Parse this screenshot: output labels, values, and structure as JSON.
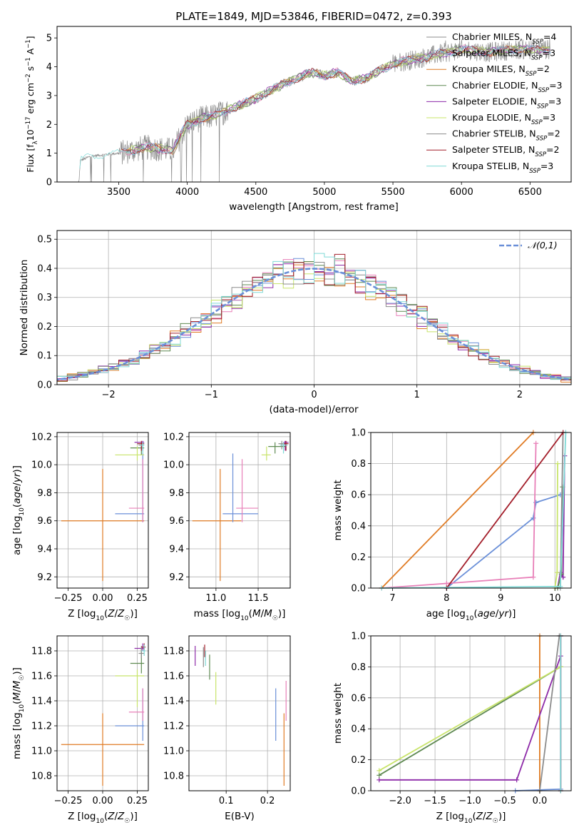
{
  "colors": [
    "#e07b24",
    "#6a8fd8",
    "#e87fb8",
    "#8d2aa8",
    "#5f8a52",
    "#c8e46a",
    "#8c8c8c",
    "#a31e2a",
    "#7fd9d6"
  ],
  "chart_data": [
    {
      "id": "spectrum",
      "type": "line",
      "title": "PLATE=1849, MJD=53846, FIBERID=0472, z=0.393",
      "xlabel": "wavelength [Angstrom, rest frame]",
      "ylabel": "Flux [f_λ 10⁻¹⁷ erg cm⁻² s⁻¹ A⁻¹]",
      "xlim": [
        3050,
        6800
      ],
      "ylim": [
        0,
        5.4
      ],
      "xticks": [
        3500,
        4000,
        4500,
        5000,
        5500,
        6000,
        6500
      ],
      "yticks": [
        0,
        1,
        2,
        3,
        4,
        5
      ],
      "legend_position": "upper right",
      "legend": [
        {
          "pre": "Chabrier MILES, N",
          "n": "4"
        },
        {
          "pre": "Salpeter MILES, N",
          "n": "3"
        },
        {
          "pre": "Kroupa MILES, N",
          "n": "2"
        },
        {
          "pre": "Chabrier ELODIE, N",
          "n": "3"
        },
        {
          "pre": "Salpeter ELODIE, N",
          "n": "3"
        },
        {
          "pre": "Kroupa ELODIE, N",
          "n": "3"
        },
        {
          "pre": "Chabrier STELIB, N",
          "n": "2"
        },
        {
          "pre": "Salpeter STELIB, N",
          "n": "2"
        },
        {
          "pre": "Kroupa STELIB, N",
          "n": "3"
        }
      ],
      "legend_sub": "SSP",
      "continuum": [
        [
          3210,
          0
        ],
        [
          3220,
          0.75
        ],
        [
          3300,
          0.9
        ],
        [
          3500,
          1.0
        ],
        [
          3700,
          1.2
        ],
        [
          3900,
          1.1
        ],
        [
          3950,
          1.6
        ],
        [
          4000,
          2.0
        ],
        [
          4100,
          2.2
        ],
        [
          4200,
          2.3
        ],
        [
          4300,
          2.5
        ],
        [
          4500,
          2.9
        ],
        [
          4700,
          3.4
        ],
        [
          4900,
          3.8
        ],
        [
          5000,
          3.7
        ],
        [
          5100,
          3.8
        ],
        [
          5200,
          3.5
        ],
        [
          5300,
          3.6
        ],
        [
          5500,
          4.1
        ],
        [
          5700,
          4.3
        ],
        [
          5900,
          4.5
        ],
        [
          6000,
          4.6
        ],
        [
          6200,
          4.5
        ],
        [
          6400,
          4.6
        ],
        [
          6600,
          4.6
        ]
      ]
    },
    {
      "id": "residuals",
      "type": "line",
      "xlabel": "(data-model)/error",
      "ylabel": "Normed distribution",
      "xlim": [
        -2.5,
        2.5
      ],
      "ylim": [
        0,
        0.53
      ],
      "xticks": [
        -2,
        -1,
        0,
        1,
        2
      ],
      "yticks": [
        0.0,
        0.1,
        0.2,
        0.3,
        0.4,
        0.5
      ],
      "reference": {
        "name": "𝒩(0,1)",
        "mu": 0,
        "sigma": 1
      },
      "legend_position": "upper right"
    },
    {
      "id": "age-vs-Z",
      "type": "scatter",
      "xlabel": "Z [log₁₀(Z/Z☉)]",
      "ylabel": "age  [log₁₀(age/yr)]",
      "xlim": [
        -0.33,
        0.33
      ],
      "ylim": [
        9.12,
        10.23
      ],
      "xticks": [
        -0.25,
        0.0,
        0.25
      ],
      "yticks": [
        9.2,
        9.4,
        9.6,
        9.8,
        10.0,
        10.2
      ],
      "points": [
        {
          "c": 0,
          "x": 0.0,
          "xerr": [
            0.3,
            0.3
          ],
          "y": 9.6,
          "yerr": [
            0.43,
            0.37
          ]
        },
        {
          "c": 1,
          "x": 0.29,
          "xerr": [
            0.2,
            0.01
          ],
          "y": 9.65,
          "yerr": [
            0.06,
            0.43
          ]
        },
        {
          "c": 2,
          "x": 0.29,
          "xerr": [
            0.1,
            0.01
          ],
          "y": 9.69,
          "yerr": [
            0.1,
            0.35
          ]
        },
        {
          "c": 3,
          "x": 0.29,
          "xerr": [
            0.06,
            0.01
          ],
          "y": 10.16,
          "yerr": [
            0.06,
            0.01
          ]
        },
        {
          "c": 4,
          "x": 0.28,
          "xerr": [
            0.08,
            0.02
          ],
          "y": 10.12,
          "yerr": [
            0.05,
            0.03
          ]
        },
        {
          "c": 5,
          "x": 0.25,
          "xerr": [
            0.16,
            0.05
          ],
          "y": 10.07,
          "yerr": [
            0.04,
            0.06
          ]
        },
        {
          "c": 6,
          "x": 0.28,
          "xerr": [
            0.02,
            0.02
          ],
          "y": 10.14,
          "yerr": [
            0.04,
            0.02
          ]
        },
        {
          "c": 7,
          "x": 0.28,
          "xerr": [
            0.03,
            0.02
          ],
          "y": 10.15,
          "yerr": [
            0.05,
            0.02
          ]
        },
        {
          "c": 8,
          "x": 0.29,
          "xerr": [
            0.02,
            0.01
          ],
          "y": 10.14,
          "yerr": [
            0.06,
            0.02
          ]
        }
      ]
    },
    {
      "id": "age-vs-mass",
      "type": "scatter",
      "xlabel": "mass [log₁₀(M/M☉)]",
      "xlim": [
        10.68,
        11.88
      ],
      "ylim": [
        9.12,
        10.23
      ],
      "xticks": [
        11.0,
        11.5
      ],
      "yticks": [
        9.2,
        9.4,
        9.6,
        9.8,
        10.0,
        10.2
      ],
      "points": [
        {
          "c": 0,
          "x": 11.05,
          "xerr": [
            0.33,
            0.25
          ],
          "y": 9.6,
          "yerr": [
            0.43,
            0.37
          ]
        },
        {
          "c": 1,
          "x": 11.2,
          "xerr": [
            0.12,
            0.3
          ],
          "y": 9.65,
          "yerr": [
            0.06,
            0.43
          ]
        },
        {
          "c": 2,
          "x": 11.31,
          "xerr": [
            0.07,
            0.19
          ],
          "y": 9.69,
          "yerr": [
            0.1,
            0.35
          ]
        },
        {
          "c": 3,
          "x": 11.82,
          "xerr": [
            0.02,
            0.04
          ],
          "y": 10.16,
          "yerr": [
            0.06,
            0.01
          ]
        },
        {
          "c": 4,
          "x": 11.7,
          "xerr": [
            0.08,
            0.12
          ],
          "y": 10.13,
          "yerr": [
            0.05,
            0.03
          ]
        },
        {
          "c": 5,
          "x": 11.6,
          "xerr": [
            0.06,
            0.05
          ],
          "y": 10.07,
          "yerr": [
            0.04,
            0.06
          ]
        },
        {
          "c": 6,
          "x": 11.78,
          "xerr": [
            0.04,
            0.06
          ],
          "y": 10.15,
          "yerr": [
            0.04,
            0.02
          ]
        },
        {
          "c": 7,
          "x": 11.83,
          "xerr": [
            0.03,
            0.03
          ],
          "y": 10.15,
          "yerr": [
            0.05,
            0.02
          ]
        },
        {
          "c": 8,
          "x": 11.8,
          "xerr": [
            0.04,
            0.05
          ],
          "y": 10.14,
          "yerr": [
            0.06,
            0.02
          ]
        }
      ]
    },
    {
      "id": "cumulative-age",
      "type": "line",
      "xlabel": "age  [log₁₀(age/yr)]",
      "ylabel": "mass weight",
      "xlim": [
        6.6,
        10.3
      ],
      "ylim": [
        0,
        1
      ],
      "xticks": [
        7,
        8,
        9,
        10
      ],
      "yticks": [
        0.0,
        0.2,
        0.4,
        0.6,
        0.8,
        1.0
      ],
      "series": [
        {
          "c": 0,
          "points": [
            [
              6.8,
              0.0
            ],
            [
              9.6,
              1.0
            ]
          ]
        },
        {
          "c": 1,
          "points": [
            [
              8.0,
              0.0
            ],
            [
              9.6,
              0.45
            ],
            [
              9.65,
              0.55
            ],
            [
              10.1,
              0.6
            ]
          ]
        },
        {
          "c": 2,
          "points": [
            [
              6.8,
              0.0
            ],
            [
              8.0,
              0.03
            ],
            [
              9.6,
              0.07
            ],
            [
              9.65,
              0.93
            ]
          ]
        },
        {
          "c": 3,
          "points": [
            [
              10.05,
              0.0
            ],
            [
              10.1,
              0.1
            ],
            [
              10.15,
              0.07
            ],
            [
              10.18,
              0.85
            ]
          ]
        },
        {
          "c": 4,
          "points": [
            [
              10.05,
              0.0
            ],
            [
              10.12,
              0.09
            ],
            [
              10.14,
              0.65
            ]
          ]
        },
        {
          "c": 5,
          "points": [
            [
              10.0,
              0.0
            ],
            [
              10.04,
              0.1
            ],
            [
              10.05,
              0.8
            ]
          ]
        },
        {
          "c": 6,
          "points": [
            [
              10.1,
              0.0
            ],
            [
              10.15,
              1.0
            ]
          ]
        },
        {
          "c": 7,
          "points": [
            [
              8.0,
              0.0
            ],
            [
              10.15,
              1.0
            ]
          ]
        },
        {
          "c": 8,
          "points": [
            [
              6.8,
              0.0
            ],
            [
              10.1,
              0.01
            ],
            [
              10.2,
              1.0
            ]
          ]
        }
      ]
    },
    {
      "id": "mass-vs-Z",
      "type": "scatter",
      "xlabel": "Z [log₁₀(Z/Z☉)]",
      "ylabel": "mass [log₁₀(M/M☉)]",
      "xlim": [
        -0.33,
        0.33
      ],
      "ylim": [
        10.68,
        11.92
      ],
      "xticks": [
        -0.25,
        0.0,
        0.25
      ],
      "yticks": [
        10.8,
        11.0,
        11.2,
        11.4,
        11.6,
        11.8
      ],
      "points": [
        {
          "c": 0,
          "x": 0.0,
          "xerr": [
            0.3,
            0.3
          ],
          "y": 11.05,
          "yerr": [
            0.33,
            0.25
          ]
        },
        {
          "c": 1,
          "x": 0.29,
          "xerr": [
            0.2,
            0.01
          ],
          "y": 11.2,
          "yerr": [
            0.12,
            0.3
          ]
        },
        {
          "c": 2,
          "x": 0.29,
          "xerr": [
            0.1,
            0.01
          ],
          "y": 11.31,
          "yerr": [
            0.07,
            0.19
          ]
        },
        {
          "c": 3,
          "x": 0.29,
          "xerr": [
            0.06,
            0.01
          ],
          "y": 11.82,
          "yerr": [
            0.02,
            0.04
          ]
        },
        {
          "c": 4,
          "x": 0.28,
          "xerr": [
            0.08,
            0.02
          ],
          "y": 11.7,
          "yerr": [
            0.08,
            0.12
          ]
        },
        {
          "c": 5,
          "x": 0.25,
          "xerr": [
            0.16,
            0.05
          ],
          "y": 11.6,
          "yerr": [
            0.25,
            0.05
          ]
        },
        {
          "c": 6,
          "x": 0.28,
          "xerr": [
            0.02,
            0.02
          ],
          "y": 11.78,
          "yerr": [
            0.04,
            0.06
          ]
        },
        {
          "c": 7,
          "x": 0.3,
          "xerr": [
            0.02,
            0.01
          ],
          "y": 11.83,
          "yerr": [
            0.03,
            0.03
          ]
        },
        {
          "c": 8,
          "x": 0.3,
          "xerr": [
            0.02,
            0.01
          ],
          "y": 11.8,
          "yerr": [
            0.04,
            0.05
          ]
        }
      ]
    },
    {
      "id": "mass-vs-EBV",
      "type": "scatter",
      "xlabel": "E(B-V)",
      "xlim": [
        0.01,
        0.255
      ],
      "ylim": [
        10.68,
        11.92
      ],
      "xticks": [
        0.1,
        0.2
      ],
      "yticks": [
        10.8,
        11.0,
        11.2,
        11.4,
        11.6,
        11.8
      ],
      "points": [
        {
          "c": 0,
          "x": 0.24,
          "y": 11.05,
          "yerr": [
            0.33,
            0.25
          ]
        },
        {
          "c": 1,
          "x": 0.22,
          "y": 11.2,
          "yerr": [
            0.12,
            0.3
          ]
        },
        {
          "c": 2,
          "x": 0.245,
          "y": 11.31,
          "yerr": [
            0.07,
            0.25
          ]
        },
        {
          "c": 3,
          "x": 0.025,
          "y": 11.76,
          "yerr": [
            0.08,
            0.08
          ]
        },
        {
          "c": 4,
          "x": 0.06,
          "y": 11.67,
          "yerr": [
            0.1,
            0.1
          ]
        },
        {
          "c": 5,
          "x": 0.075,
          "y": 11.5,
          "yerr": [
            0.13,
            0.13
          ]
        },
        {
          "c": 6,
          "x": 0.045,
          "y": 11.75,
          "yerr": [
            0.08,
            0.08
          ]
        },
        {
          "c": 7,
          "x": 0.048,
          "y": 11.8,
          "yerr": [
            0.05,
            0.05
          ]
        },
        {
          "c": 8,
          "x": 0.05,
          "y": 11.74,
          "yerr": [
            0.06,
            0.06
          ]
        }
      ]
    },
    {
      "id": "cumulative-Z",
      "type": "line",
      "xlabel": "Z [log₁₀(Z/Z☉)]",
      "ylabel": "mass weight",
      "xlim": [
        -2.42,
        0.45
      ],
      "ylim": [
        0,
        1
      ],
      "xticks": [
        -2.0,
        -1.5,
        -1.0,
        -0.5,
        0.0
      ],
      "yticks": [
        0.0,
        0.2,
        0.4,
        0.6,
        0.8,
        1.0
      ],
      "series": [
        {
          "c": 0,
          "points": [
            [
              0.0,
              0.0
            ],
            [
              0.0,
              1.0
            ]
          ]
        },
        {
          "c": 1,
          "points": [
            [
              -0.35,
              0.0
            ],
            [
              0.3,
              0.01
            ],
            [
              0.3,
              1.0
            ]
          ]
        },
        {
          "c": 2,
          "points": [
            [
              0.3,
              0.0
            ],
            [
              0.3,
              1.0
            ]
          ]
        },
        {
          "c": 3,
          "points": [
            [
              -2.3,
              0.07
            ],
            [
              -0.33,
              0.07
            ],
            [
              0.3,
              0.87
            ]
          ]
        },
        {
          "c": 4,
          "points": [
            [
              -2.3,
              0.1
            ],
            [
              0.3,
              0.8
            ]
          ]
        },
        {
          "c": 5,
          "points": [
            [
              -2.3,
              0.13
            ],
            [
              0.3,
              0.8
            ]
          ]
        },
        {
          "c": 6,
          "points": [
            [
              0.0,
              0.0
            ],
            [
              0.28,
              1.0
            ]
          ]
        },
        {
          "c": 7,
          "points": [
            [
              0.3,
              0.0
            ],
            [
              0.3,
              1.0
            ]
          ]
        },
        {
          "c": 8,
          "points": [
            [
              0.3,
              0.0
            ],
            [
              0.3,
              1.0
            ]
          ]
        }
      ]
    }
  ]
}
